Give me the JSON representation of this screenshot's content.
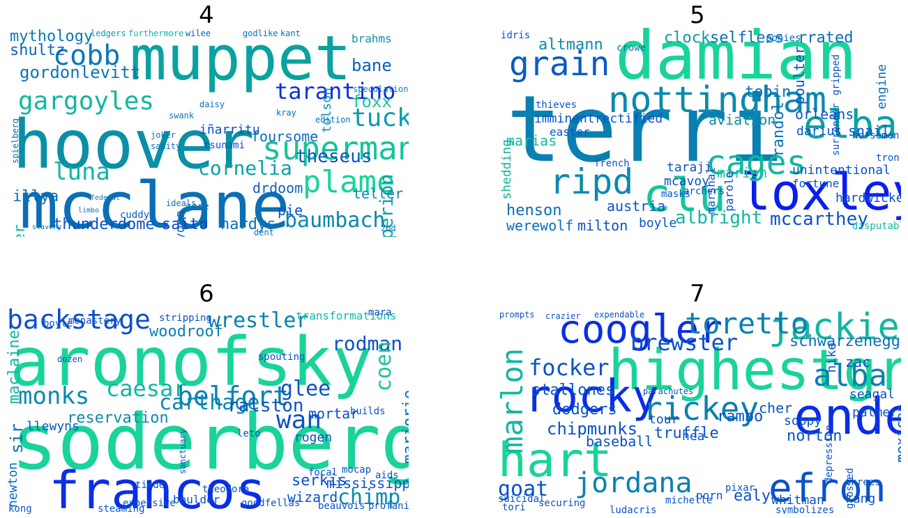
{
  "panels": [
    {
      "title": "4",
      "words": [
        {
          "text": "muppet",
          "color": "#0aa2a0"
        },
        {
          "text": "hoover",
          "color": "#0a8fa6"
        },
        {
          "text": "mcclane",
          "color": "#0a6fb4"
        },
        {
          "text": "gargoyles",
          "color": "#12b6a0"
        },
        {
          "text": "superman",
          "color": "#17c39a"
        },
        {
          "text": "tarantino",
          "color": "#0a2fe0"
        },
        {
          "text": "plame",
          "color": "#19d39a"
        },
        {
          "text": "baumbach",
          "color": "#0a86b0"
        },
        {
          "text": "cobb",
          "color": "#0a79b4"
        },
        {
          "text": "theseus",
          "color": "#0a52c8"
        },
        {
          "text": "cornelia",
          "color": "#0aa3a4"
        },
        {
          "text": "luna",
          "color": "#13b5a8"
        },
        {
          "text": "tuck",
          "color": "#0a9aac"
        },
        {
          "text": "mythology",
          "color": "#0a79b4"
        },
        {
          "text": "shultz",
          "color": "#0a63bf"
        },
        {
          "text": "gordonlevitt",
          "color": "#0a74b6"
        },
        {
          "text": "thunderdome",
          "color": "#0a4fcb"
        },
        {
          "text": "saito",
          "color": "#0a44cf"
        },
        {
          "text": "hardys",
          "color": "#0a73b6"
        },
        {
          "text": "bane",
          "color": "#0a5ec3"
        },
        {
          "text": "foxx",
          "color": "#17c69a"
        },
        {
          "text": "hyperion",
          "color": "#0a9fa8"
        },
        {
          "text": "drdoom",
          "color": "#0a64c0"
        },
        {
          "text": "teller",
          "color": "#0a8ab0"
        },
        {
          "text": "pie",
          "color": "#0a52c8"
        },
        {
          "text": "foursome",
          "color": "#0a6cba"
        },
        {
          "text": "iñarritu",
          "color": "#0a52c8"
        },
        {
          "text": "tsunami",
          "color": "#0a52c8"
        },
        {
          "text": "illya",
          "color": "#0a70b8"
        },
        {
          "text": "hammer",
          "color": "#14b9a4"
        },
        {
          "text": "tolson",
          "color": "#0a92ad"
        },
        {
          "text": "bayona",
          "color": "#0a6cba"
        },
        {
          "text": "brahms",
          "color": "#0a94ac"
        },
        {
          "text": "speculation",
          "color": "#0a84b2"
        },
        {
          "text": "cuddy",
          "color": "#0a5cc4"
        },
        {
          "text": "kray",
          "color": "#0a70b8"
        },
        {
          "text": "swank",
          "color": "#0a7ab4"
        },
        {
          "text": "gere",
          "color": "#0a7ab4"
        },
        {
          "text": "ledgers",
          "color": "#0a9aac"
        },
        {
          "text": "furthermore",
          "color": "#12b3a6"
        },
        {
          "text": "wilee",
          "color": "#0a5cc4"
        },
        {
          "text": "godlike",
          "color": "#0a70b8"
        },
        {
          "text": "kant",
          "color": "#0a70b8"
        },
        {
          "text": "joker",
          "color": "#0a70b8"
        },
        {
          "text": "sanity",
          "color": "#0a70b8"
        },
        {
          "text": "edition",
          "color": "#0a70b8"
        },
        {
          "text": "ideals",
          "color": "#0a70b8"
        },
        {
          "text": "zod",
          "color": "#0a70b8"
        },
        {
          "text": "dent",
          "color": "#0a70b8"
        },
        {
          "text": "daisy",
          "color": "#0a70b8"
        },
        {
          "text": "spielberg",
          "color": "#0a70b8"
        },
        {
          "text": "slavery",
          "color": "#0a70b8"
        },
        {
          "text": "federal",
          "color": "#0a70b8"
        },
        {
          "text": "limbo",
          "color": "#0a70b8"
        }
      ]
    },
    {
      "title": "5",
      "words": [
        {
          "text": "damian",
          "color": "#19d39a"
        },
        {
          "text": "terri",
          "color": "#0a80b2"
        },
        {
          "text": "loxley",
          "color": "#0a1ef0"
        },
        {
          "text": "nottingham",
          "color": "#0a8aaf"
        },
        {
          "text": "elba",
          "color": "#0aa3a4"
        },
        {
          "text": "clu",
          "color": "#17c49c"
        },
        {
          "text": "cages",
          "color": "#12b6a0"
        },
        {
          "text": "ripd",
          "color": "#0a8aaf"
        },
        {
          "text": "grain",
          "color": "#0a5cc4"
        },
        {
          "text": "albright",
          "color": "#12b6a0"
        },
        {
          "text": "mccarthey",
          "color": "#0a52c8"
        },
        {
          "text": "henson",
          "color": "#0a6cba"
        },
        {
          "text": "werewolf",
          "color": "#0a6cba"
        },
        {
          "text": "milton",
          "color": "#0a52c8"
        },
        {
          "text": "marias",
          "color": "#14b9a4"
        },
        {
          "text": "altmann",
          "color": "#0a8aaf"
        },
        {
          "text": "clock",
          "color": "#0a9aac"
        },
        {
          "text": "selfless",
          "color": "#0a70b8"
        },
        {
          "text": "rrated",
          "color": "#0a6cba"
        },
        {
          "text": "tobin",
          "color": "#0a70b8"
        },
        {
          "text": "orleans",
          "color": "#0a52c8"
        },
        {
          "text": "snail",
          "color": "#0a52c8"
        },
        {
          "text": "darius",
          "color": "#0a52c8"
        },
        {
          "text": "randol",
          "color": "#0a70b8"
        },
        {
          "text": "imminentrectified",
          "color": "#0a52c8"
        },
        {
          "text": "aviation",
          "color": "#0a8aaf"
        },
        {
          "text": "easter",
          "color": "#0a52c8"
        },
        {
          "text": "marion",
          "color": "#17c49c"
        },
        {
          "text": "taraji",
          "color": "#0a52c8"
        },
        {
          "text": "mcavoy",
          "color": "#0a52c8"
        },
        {
          "text": "austria",
          "color": "#0a52c8"
        },
        {
          "text": "boyle",
          "color": "#0a52c8"
        },
        {
          "text": "unintentional",
          "color": "#0a52c8"
        },
        {
          "text": "fortune",
          "color": "#0a52c8"
        },
        {
          "text": "hardwicke",
          "color": "#0a52c8"
        },
        {
          "text": "poulter",
          "color": "#0a52c8"
        },
        {
          "text": "engine",
          "color": "#0a70b8"
        },
        {
          "text": "idris",
          "color": "#0a52c8"
        },
        {
          "text": "crowe",
          "color": "#0a70b8"
        },
        {
          "text": "ponies",
          "color": "#0a70b8"
        },
        {
          "text": "shedding",
          "color": "#12b6a0"
        },
        {
          "text": "archers",
          "color": "#0a52c8"
        },
        {
          "text": "masks",
          "color": "#0a52c8"
        },
        {
          "text": "parole",
          "color": "#0a52c8"
        },
        {
          "text": "marshal",
          "color": "#0a52c8"
        },
        {
          "text": "thieves",
          "color": "#0a52c8"
        },
        {
          "text": "gripped",
          "color": "#0a52c8"
        },
        {
          "text": "surrender",
          "color": "#0a52c8"
        },
        {
          "text": "horsemen",
          "color": "#0a52c8"
        },
        {
          "text": "tron",
          "color": "#0a52c8"
        },
        {
          "text": "disputable",
          "color": "#14b9a4"
        },
        {
          "text": "french",
          "color": "#0a52c8"
        }
      ]
    },
    {
      "title": "6",
      "words": [
        {
          "text": "aronofsky",
          "color": "#19d39a"
        },
        {
          "text": "soderbergh",
          "color": "#19d39a"
        },
        {
          "text": "francos",
          "color": "#0a2ee6"
        },
        {
          "text": "backstage",
          "color": "#0a50cc"
        },
        {
          "text": "wrestler",
          "color": "#0a80b2"
        },
        {
          "text": "rodman",
          "color": "#0a52c8"
        },
        {
          "text": "monks",
          "color": "#0a8aaf"
        },
        {
          "text": "caesar",
          "color": "#12b6a0"
        },
        {
          "text": "belfort",
          "color": "#0a80b2"
        },
        {
          "text": "woodroof",
          "color": "#0a80b2"
        },
        {
          "text": "glee",
          "color": "#0a52c8"
        },
        {
          "text": "coen",
          "color": "#17c49c"
        },
        {
          "text": "marjorie",
          "color": "#0a6cba"
        },
        {
          "text": "carthage",
          "color": "#0a8aaf"
        },
        {
          "text": "ralston",
          "color": "#0a52c8"
        },
        {
          "text": "wan",
          "color": "#0a52c8"
        },
        {
          "text": "maclaine",
          "color": "#12b6a0"
        },
        {
          "text": "sir",
          "color": "#0a6cba"
        },
        {
          "text": "reservation",
          "color": "#0a8aaf"
        },
        {
          "text": "llewyns",
          "color": "#0a52c8"
        },
        {
          "text": "chimp",
          "color": "#0a8aaf"
        },
        {
          "text": "mississippi",
          "color": "#0a52c8"
        },
        {
          "text": "serkis",
          "color": "#0a52c8"
        },
        {
          "text": "wizard",
          "color": "#0a52c8"
        },
        {
          "text": "newton",
          "color": "#0a6cba"
        },
        {
          "text": "mortar",
          "color": "#0a52c8"
        },
        {
          "text": "rogen",
          "color": "#0a52c8"
        },
        {
          "text": "leto",
          "color": "#0a52c8"
        },
        {
          "text": "transformations",
          "color": "#14b9a4"
        },
        {
          "text": "stripping",
          "color": "#0a52c8"
        },
        {
          "text": "boyle",
          "color": "#0a52c8"
        },
        {
          "text": "monastery",
          "color": "#0a52c8"
        },
        {
          "text": "boulder",
          "color": "#0a52c8"
        },
        {
          "text": "expensive",
          "color": "#0a52c8"
        },
        {
          "text": "steaming",
          "color": "#0a52c8"
        },
        {
          "text": "beauvois",
          "color": "#0a52c8"
        },
        {
          "text": "profanity",
          "color": "#0a52c8"
        },
        {
          "text": "goodfellas",
          "color": "#0a52c8"
        },
        {
          "text": "tiede",
          "color": "#0a52c8"
        },
        {
          "text": "theodora",
          "color": "#0a52c8"
        },
        {
          "text": "kong",
          "color": "#0a52c8"
        },
        {
          "text": "mara",
          "color": "#0a52c8"
        },
        {
          "text": "aids",
          "color": "#0a52c8"
        },
        {
          "text": "builds",
          "color": "#0a52c8"
        },
        {
          "text": "mocap",
          "color": "#0a52c8"
        },
        {
          "text": "spouting",
          "color": "#0a52c8"
        },
        {
          "text": "focal",
          "color": "#0a52c8"
        },
        {
          "text": "dozen",
          "color": "#0a52c8"
        },
        {
          "text": "sanctuary",
          "color": "#0a52c8"
        }
      ]
    },
    {
      "title": "7",
      "words": [
        {
          "text": "coogler",
          "color": "#0a2ee6"
        },
        {
          "text": "highestgrossing",
          "color": "#19d39a"
        },
        {
          "text": "hart",
          "color": "#19d39a"
        },
        {
          "text": "ender",
          "color": "#0a2ee6"
        },
        {
          "text": "jackie",
          "color": "#12b6a0"
        },
        {
          "text": "toretto",
          "color": "#0a80b2"
        },
        {
          "text": "rocky",
          "color": "#0a2ee6"
        },
        {
          "text": "rickey",
          "color": "#0a80b2"
        },
        {
          "text": "efron",
          "color": "#0a52c8"
        },
        {
          "text": "jordana",
          "color": "#0a80b2"
        },
        {
          "text": "marlon",
          "color": "#12b6a0"
        },
        {
          "text": "brewster",
          "color": "#0a52c8"
        },
        {
          "text": "alba",
          "color": "#0a80b2"
        },
        {
          "text": "focker",
          "color": "#0a52c8"
        },
        {
          "text": "stallones",
          "color": "#0a52c8"
        },
        {
          "text": "schwarzenegger",
          "color": "#0a70b8"
        },
        {
          "text": "goat",
          "color": "#0a52c8"
        },
        {
          "text": "dodgers",
          "color": "#0a52c8"
        },
        {
          "text": "chipmunks",
          "color": "#0a52c8"
        },
        {
          "text": "baseball",
          "color": "#0a52c8"
        },
        {
          "text": "truffle",
          "color": "#0a52c8"
        },
        {
          "text": "rambo",
          "color": "#0a52c8"
        },
        {
          "text": "norton",
          "color": "#0a52c8"
        },
        {
          "text": "cher",
          "color": "#0a52c8"
        },
        {
          "text": "kang",
          "color": "#0a52c8"
        },
        {
          "text": "zac",
          "color": "#0a52c8"
        },
        {
          "text": "mexican",
          "color": "#0a52c8"
        },
        {
          "text": "palmer",
          "color": "#0a52c8"
        },
        {
          "text": "seagal",
          "color": "#0a52c8"
        },
        {
          "text": "hike",
          "color": "#0a52c8"
        },
        {
          "text": "soppy",
          "color": "#0a52c8"
        },
        {
          "text": "tour",
          "color": "#0a52c8"
        },
        {
          "text": "hea",
          "color": "#0a52c8"
        },
        {
          "text": "ealy",
          "color": "#0a52c8"
        },
        {
          "text": "porn",
          "color": "#0a52c8"
        },
        {
          "text": "whitman",
          "color": "#0a52c8"
        },
        {
          "text": "tori",
          "color": "#0a52c8"
        },
        {
          "text": "securing",
          "color": "#0a52c8"
        },
        {
          "text": "suicidal",
          "color": "#0a52c8"
        },
        {
          "text": "michelle",
          "color": "#0a52c8"
        },
        {
          "text": "crazier",
          "color": "#0a52c8"
        },
        {
          "text": "expendable",
          "color": "#0a52c8"
        },
        {
          "text": "parachutes",
          "color": "#0a52c8"
        },
        {
          "text": "prompts",
          "color": "#0a52c8"
        },
        {
          "text": "depression",
          "color": "#0a52c8"
        },
        {
          "text": "grossed",
          "color": "#0a52c8"
        },
        {
          "text": "ludacris",
          "color": "#0a52c8"
        },
        {
          "text": "pixar",
          "color": "#0a52c8"
        },
        {
          "text": "threes",
          "color": "#0a52c8"
        },
        {
          "text": "symbolizes",
          "color": "#0a52c8"
        }
      ]
    }
  ]
}
